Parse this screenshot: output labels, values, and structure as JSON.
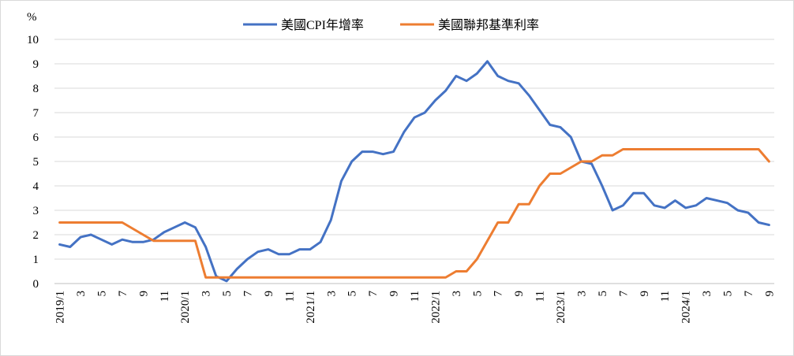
{
  "chart_data": {
    "type": "line",
    "unit_label": "%",
    "ylim": [
      0,
      10
    ],
    "y_ticks": [
      "0",
      "1",
      "2",
      "3",
      "4",
      "5",
      "6",
      "7",
      "8",
      "9",
      "10"
    ],
    "x_tick_labels": [
      "2019/1",
      "3",
      "5",
      "7",
      "9",
      "11",
      "2020/1",
      "3",
      "5",
      "7",
      "9",
      "11",
      "2021/1",
      "3",
      "5",
      "7",
      "9",
      "11",
      "2022/1",
      "3",
      "5",
      "7",
      "9",
      "11",
      "2023/1",
      "3",
      "5",
      "7",
      "9",
      "11",
      "2024/1",
      "3",
      "5",
      "7",
      "9"
    ],
    "grid": true,
    "legend_position": "top",
    "series": [
      {
        "name": "美國CPI年增率",
        "color": "#4472C4",
        "values": [
          1.6,
          1.5,
          1.9,
          2.0,
          1.8,
          1.6,
          1.8,
          1.7,
          1.7,
          1.8,
          2.1,
          2.3,
          2.5,
          2.3,
          1.5,
          0.3,
          0.1,
          0.6,
          1.0,
          1.3,
          1.4,
          1.2,
          1.2,
          1.4,
          1.4,
          1.7,
          2.6,
          4.2,
          5.0,
          5.4,
          5.4,
          5.3,
          5.4,
          6.2,
          6.8,
          7.0,
          7.5,
          7.9,
          8.5,
          8.3,
          8.6,
          9.1,
          8.5,
          8.3,
          8.2,
          7.7,
          7.1,
          6.5,
          6.4,
          6.0,
          5.0,
          4.9,
          4.0,
          3.0,
          3.2,
          3.7,
          3.7,
          3.2,
          3.1,
          3.4,
          3.1,
          3.2,
          3.5,
          3.4,
          3.3,
          3.0,
          2.9,
          2.5,
          2.4
        ]
      },
      {
        "name": "美國聯邦基準利率",
        "color": "#ED7D31",
        "values": [
          2.5,
          2.5,
          2.5,
          2.5,
          2.5,
          2.5,
          2.5,
          2.25,
          2.0,
          1.75,
          1.75,
          1.75,
          1.75,
          1.75,
          0.25,
          0.25,
          0.25,
          0.25,
          0.25,
          0.25,
          0.25,
          0.25,
          0.25,
          0.25,
          0.25,
          0.25,
          0.25,
          0.25,
          0.25,
          0.25,
          0.25,
          0.25,
          0.25,
          0.25,
          0.25,
          0.25,
          0.25,
          0.25,
          0.5,
          0.5,
          1.0,
          1.75,
          2.5,
          2.5,
          3.25,
          3.25,
          4.0,
          4.5,
          4.5,
          4.75,
          5.0,
          5.0,
          5.25,
          5.25,
          5.5,
          5.5,
          5.5,
          5.5,
          5.5,
          5.5,
          5.5,
          5.5,
          5.5,
          5.5,
          5.5,
          5.5,
          5.5,
          5.5,
          5.0
        ]
      }
    ]
  }
}
